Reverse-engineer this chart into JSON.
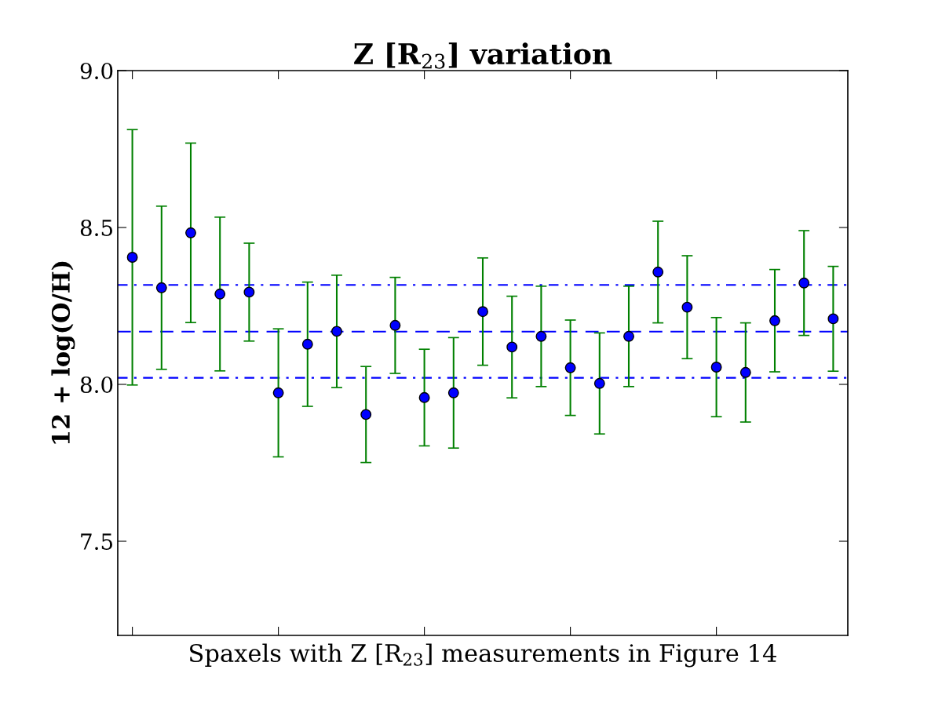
{
  "chart_data": {
    "type": "scatter",
    "title": "Z [R$_{23}$] variation",
    "xlabel": "Spaxels with Z [R$_{23}$] measurements in Figure 14",
    "ylabel": "12 + log(O/H)",
    "categories": [
      null,
      null,
      null,
      null,
      null,
      null,
      null,
      null,
      null,
      null,
      null,
      null,
      null,
      null,
      null,
      null,
      null,
      null,
      null,
      null,
      null,
      null,
      null,
      null,
      null
    ],
    "series": [
      {
        "color": "#0000ff",
        "values": [
          8.405,
          8.308,
          8.483,
          8.288,
          8.294,
          7.973,
          8.128,
          8.169,
          7.904,
          8.188,
          7.958,
          7.973,
          8.232,
          8.119,
          8.153,
          8.053,
          8.003,
          8.153,
          8.358,
          8.246,
          8.055,
          8.038,
          8.203,
          8.323,
          8.209
        ],
        "errors": [
          0.407,
          0.26,
          0.286,
          0.245,
          0.156,
          0.204,
          0.198,
          0.179,
          0.153,
          0.153,
          0.154,
          0.176,
          0.171,
          0.162,
          0.16,
          0.152,
          0.161,
          0.16,
          0.162,
          0.164,
          0.158,
          0.158,
          0.163,
          0.167,
          0.167
        ]
      }
    ],
    "ylim": [
      7.2,
      9.0
    ],
    "yticks": [
      {
        "value": 7.5,
        "label": "7.5"
      },
      {
        "value": 8,
        "label": "8.0"
      },
      {
        "value": 8.5,
        "label": "8.5"
      },
      {
        "value": 9,
        "label": "9.0"
      }
    ],
    "tick_labels": "y",
    "ref_lines": [
      {
        "axis": "y",
        "value": 8.168,
        "color": "#0000ff",
        "line_style": "dashed"
      },
      {
        "axis": "y",
        "value": 8.317,
        "color": "#0000ff",
        "line_style": "dashdot"
      },
      {
        "axis": "y",
        "value": 8.021,
        "color": "#0000ff",
        "line_style": "dashdot"
      }
    ],
    "marker": "circle",
    "grid": false,
    "legend": false
  }
}
